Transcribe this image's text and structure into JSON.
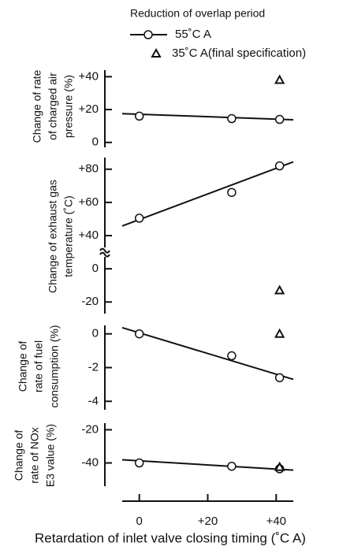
{
  "chart_data": [
    {
      "type": "line",
      "legend_title": "Reduction of overlap period",
      "ylabel": [
        "Change of rate",
        "of charged air",
        "pressure (%)"
      ],
      "xlim": [
        -5,
        45
      ],
      "ylim": [
        -3,
        44
      ],
      "yticks": [
        0,
        {
          "value": 20,
          "label": "+20"
        },
        {
          "value": 40,
          "label": "+40"
        }
      ],
      "series": [
        {
          "name": "55˚C A",
          "marker": "circle",
          "x": [
            0,
            27,
            41
          ],
          "values": [
            16,
            14.5,
            14
          ]
        },
        {
          "name": "35˚C A(final specification)",
          "marker": "triangle",
          "x": [
            41
          ],
          "values": [
            38
          ]
        }
      ],
      "trend": {
        "x": [
          -5,
          45
        ],
        "values": [
          17.5,
          13.8
        ]
      }
    },
    {
      "type": "line",
      "ylabel": [
        "Change of exhaust gas",
        "temperature (˚C)"
      ],
      "xlim": [
        -5,
        45
      ],
      "ylim": [
        -27,
        87
      ],
      "axis_break": [
        10,
        30
      ],
      "yticks": [
        -20,
        0,
        {
          "value": 40,
          "label": "+40"
        },
        {
          "value": 60,
          "label": "+60"
        },
        {
          "value": 80,
          "label": "+80"
        }
      ],
      "series": [
        {
          "marker": "circle",
          "x": [
            0,
            27,
            41
          ],
          "values": [
            50.5,
            66,
            82
          ]
        },
        {
          "marker": "triangle",
          "x": [
            41
          ],
          "values": [
            -13
          ]
        }
      ],
      "trend": {
        "x": [
          -5,
          45
        ],
        "values": [
          45.8,
          84.4
        ]
      }
    },
    {
      "type": "line",
      "ylabel": [
        "Change of",
        "rate of fuel",
        "consumption (%)"
      ],
      "xlim": [
        -5,
        45
      ],
      "ylim": [
        -4.5,
        0.5
      ],
      "yticks": [
        -4,
        -2,
        0
      ],
      "series": [
        {
          "marker": "circle",
          "x": [
            0,
            27,
            41
          ],
          "values": [
            0,
            -1.3,
            -2.6
          ]
        },
        {
          "marker": "triangle",
          "x": [
            41
          ],
          "values": [
            0
          ]
        }
      ],
      "trend": {
        "x": [
          -5,
          45
        ],
        "values": [
          0.37,
          -2.7
        ]
      }
    },
    {
      "type": "line",
      "ylabel": [
        "Change of",
        "rate of NOx",
        "E3 value (%)"
      ],
      "xlim": [
        -5,
        45
      ],
      "ylim": [
        -54,
        -16
      ],
      "yticks": [
        -40,
        -20
      ],
      "xticks": [
        0,
        {
          "value": 20,
          "label": "+20"
        },
        {
          "value": 40,
          "label": "+40"
        }
      ],
      "xlabel": "Retardation of inlet valve closing timing (˚C A)",
      "series": [
        {
          "marker": "circle",
          "x": [
            0,
            27,
            41
          ],
          "values": [
            -40,
            -42,
            -43.5
          ]
        },
        {
          "marker": "triangle",
          "x": [
            41
          ],
          "values": [
            -42.5
          ]
        }
      ],
      "trend": {
        "x": [
          -5,
          45
        ],
        "values": [
          -38.1,
          -44.3
        ]
      }
    }
  ]
}
